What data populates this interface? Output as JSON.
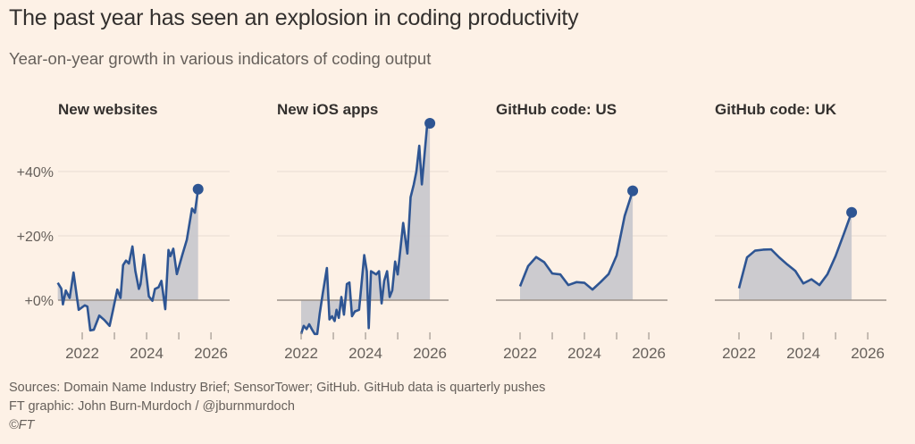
{
  "title": "The past year has seen an explosion in coding productivity",
  "subtitle": "Year-on-year growth in various indicators of coding output",
  "footer": {
    "sources": "Sources: Domain Name Industry Brief; SensorTower; GitHub. GitHub data is quarterly pushes",
    "credit": "FT graphic: John Burn-Murdoch / @jburnmurdoch",
    "copyright": "©FT"
  },
  "colors": {
    "background": "#fdf1e6",
    "line": "#2e5593",
    "area": "#c9c8cd",
    "zero_line": "#9b928a",
    "grid": "#e6dcd2"
  },
  "chart_data": [
    {
      "type": "area",
      "title": "New websites",
      "xlim": [
        2021.25,
        2026.58
      ],
      "ylim": [
        -10,
        55
      ],
      "yticks": [
        0,
        20,
        40
      ],
      "ytick_labels": [
        "+0%",
        "+20%",
        "+40%"
      ],
      "xticks": [
        2022,
        2023,
        2024,
        2025,
        2026
      ],
      "xtick_labels": {
        "2022": "2022",
        "2024": "2024",
        "2026": "2026"
      },
      "grid": true,
      "end_marker": true,
      "points": [
        [
          2021.24,
          5.4
        ],
        [
          2021.35,
          3.6
        ],
        [
          2021.4,
          -1.3
        ],
        [
          2021.49,
          3
        ],
        [
          2021.61,
          0.7
        ],
        [
          2021.73,
          8.6
        ],
        [
          2021.89,
          -3
        ],
        [
          2022.08,
          -1.6
        ],
        [
          2022.16,
          -2
        ],
        [
          2022.25,
          -9.4
        ],
        [
          2022.36,
          -9.2
        ],
        [
          2022.53,
          -4.8
        ],
        [
          2022.69,
          -6.2
        ],
        [
          2022.85,
          -8
        ],
        [
          2022.95,
          -3.4
        ],
        [
          2023.09,
          3.3
        ],
        [
          2023.19,
          0.7
        ],
        [
          2023.27,
          10.9
        ],
        [
          2023.36,
          12.3
        ],
        [
          2023.45,
          11.4
        ],
        [
          2023.56,
          16.7
        ],
        [
          2023.65,
          9.1
        ],
        [
          2023.76,
          3.5
        ],
        [
          2023.81,
          4.9
        ],
        [
          2023.92,
          14.1
        ],
        [
          2024.07,
          1.2
        ],
        [
          2024.18,
          -0.2
        ],
        [
          2024.26,
          3.5
        ],
        [
          2024.37,
          4
        ],
        [
          2024.46,
          6
        ],
        [
          2024.58,
          -2.8
        ],
        [
          2024.68,
          15.6
        ],
        [
          2024.74,
          13.7
        ],
        [
          2024.83,
          16
        ],
        [
          2024.94,
          8.1
        ],
        [
          2025.11,
          14.1
        ],
        [
          2025.25,
          18.8
        ],
        [
          2025.41,
          28.5
        ],
        [
          2025.5,
          27.2
        ],
        [
          2025.6,
          34.5
        ]
      ]
    },
    {
      "type": "area",
      "title": "New iOS apps",
      "xlim": [
        2021.25,
        2026.58
      ],
      "ylim": [
        -10,
        55
      ],
      "yticks": [
        0,
        20,
        40
      ],
      "xticks": [
        2022,
        2023,
        2024,
        2025,
        2026
      ],
      "xtick_labels": {
        "2022": "2022",
        "2024": "2024",
        "2026": "2026"
      },
      "grid": true,
      "end_marker": true,
      "points": [
        [
          2022.0,
          -10.5
        ],
        [
          2022.08,
          -8
        ],
        [
          2022.17,
          -9
        ],
        [
          2022.25,
          -7.5
        ],
        [
          2022.33,
          -9
        ],
        [
          2022.42,
          -10.5
        ],
        [
          2022.5,
          -10.5
        ],
        [
          2022.58,
          -4
        ],
        [
          2022.67,
          2
        ],
        [
          2022.8,
          10
        ],
        [
          2022.88,
          -6
        ],
        [
          2022.96,
          -5
        ],
        [
          2023.04,
          -6.5
        ],
        [
          2023.1,
          -3
        ],
        [
          2023.17,
          -5.5
        ],
        [
          2023.25,
          1
        ],
        [
          2023.33,
          -4.5
        ],
        [
          2023.42,
          5
        ],
        [
          2023.5,
          5.5
        ],
        [
          2023.58,
          -5
        ],
        [
          2023.67,
          -3.5
        ],
        [
          2023.8,
          -3
        ],
        [
          2023.96,
          14
        ],
        [
          2024.04,
          9
        ],
        [
          2024.1,
          -8.7
        ],
        [
          2024.17,
          9
        ],
        [
          2024.25,
          8.5
        ],
        [
          2024.33,
          8
        ],
        [
          2024.42,
          9
        ],
        [
          2024.5,
          -1
        ],
        [
          2024.58,
          6
        ],
        [
          2024.67,
          9
        ],
        [
          2024.75,
          1
        ],
        [
          2024.83,
          3
        ],
        [
          2024.92,
          12
        ],
        [
          2025.0,
          8
        ],
        [
          2025.17,
          24
        ],
        [
          2025.3,
          14.5
        ],
        [
          2025.4,
          32
        ],
        [
          2025.5,
          36
        ],
        [
          2025.58,
          40
        ],
        [
          2025.67,
          48
        ],
        [
          2025.75,
          36
        ],
        [
          2025.92,
          55
        ],
        [
          2026.0,
          55
        ]
      ]
    },
    {
      "type": "area",
      "title": "GitHub code: US",
      "xlim": [
        2021.25,
        2026.58
      ],
      "ylim": [
        -10,
        55
      ],
      "yticks": [
        0,
        20,
        40
      ],
      "xticks": [
        2022,
        2023,
        2024,
        2025,
        2026
      ],
      "xtick_labels": {
        "2022": "2022",
        "2024": "2024",
        "2026": "2026"
      },
      "grid": true,
      "end_marker": true,
      "points": [
        [
          2022.0,
          4.3
        ],
        [
          2022.25,
          10.6
        ],
        [
          2022.5,
          13.4
        ],
        [
          2022.75,
          11.8
        ],
        [
          2023.0,
          8.3
        ],
        [
          2023.25,
          8
        ],
        [
          2023.5,
          4.7
        ],
        [
          2023.75,
          5.6
        ],
        [
          2024.0,
          5.4
        ],
        [
          2024.25,
          3.3
        ],
        [
          2024.5,
          5.6
        ],
        [
          2024.75,
          8.1
        ],
        [
          2025.0,
          13.9
        ],
        [
          2025.25,
          26.2
        ],
        [
          2025.5,
          34
        ]
      ]
    },
    {
      "type": "area",
      "title": "GitHub code: UK",
      "xlim": [
        2021.25,
        2026.58
      ],
      "ylim": [
        -10,
        55
      ],
      "yticks": [
        0,
        20,
        40
      ],
      "xticks": [
        2022,
        2023,
        2024,
        2025,
        2026
      ],
      "xtick_labels": {
        "2022": "2022",
        "2024": "2024",
        "2026": "2026"
      },
      "grid": true,
      "end_marker": true,
      "points": [
        [
          2022.0,
          3.7
        ],
        [
          2022.25,
          13.3
        ],
        [
          2022.5,
          15.4
        ],
        [
          2022.75,
          15.7
        ],
        [
          2023.0,
          15.8
        ],
        [
          2023.25,
          13.3
        ],
        [
          2023.5,
          11.1
        ],
        [
          2023.75,
          9.1
        ],
        [
          2024.0,
          5.2
        ],
        [
          2024.25,
          6.5
        ],
        [
          2024.5,
          4.7
        ],
        [
          2024.75,
          8.1
        ],
        [
          2025.0,
          13.7
        ],
        [
          2025.25,
          20.4
        ],
        [
          2025.5,
          27.3
        ]
      ]
    }
  ]
}
